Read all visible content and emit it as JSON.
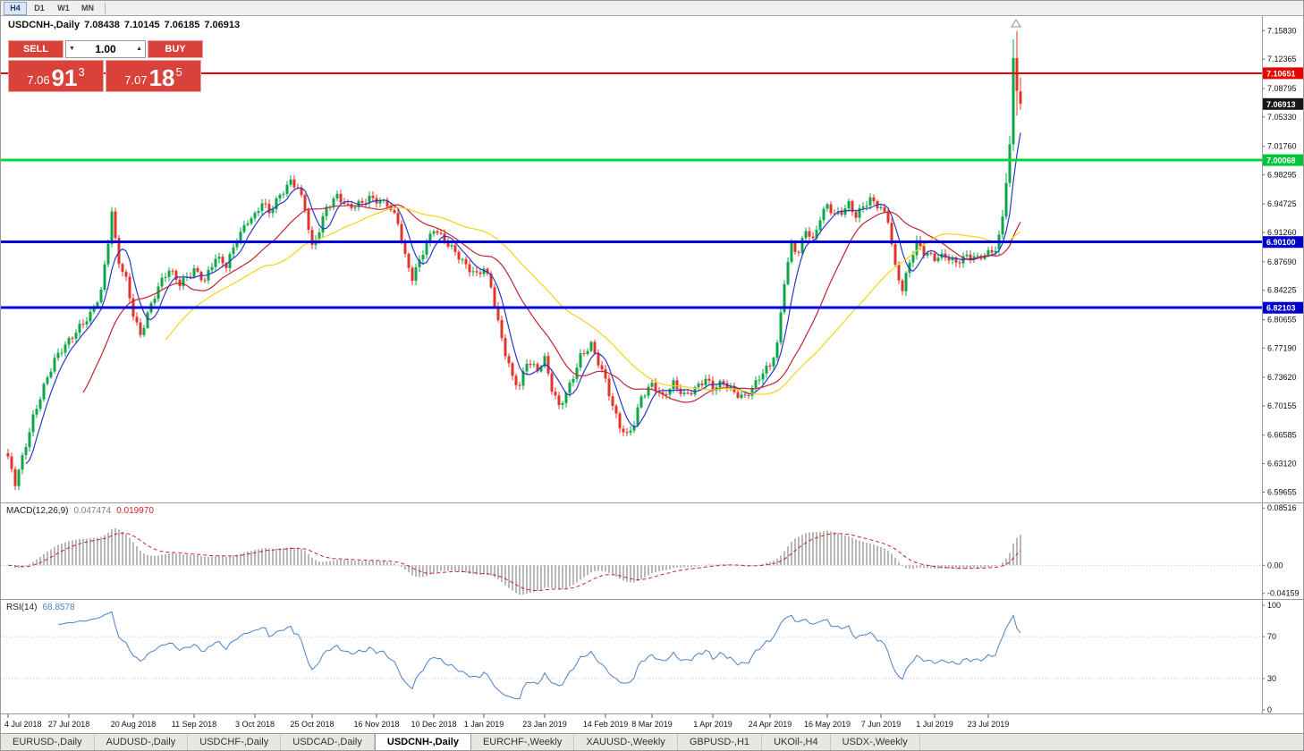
{
  "toolbar": {
    "timeframe_buttons": [
      {
        "label": "H4",
        "active": true
      },
      {
        "label": "D1",
        "active": false
      },
      {
        "label": "W1",
        "active": false
      },
      {
        "label": "MN",
        "active": false
      }
    ]
  },
  "chart_header": {
    "symbol_period": "USDCNH-,Daily",
    "open": "7.08438",
    "high": "7.10145",
    "low": "7.06185",
    "close": "7.06913"
  },
  "trade_panel": {
    "sell_button": "SELL",
    "buy_button": "BUY",
    "volume": "1.00",
    "sell_price": {
      "main": "7.06",
      "pips": "91",
      "fraction": "3"
    },
    "buy_price": {
      "main": "7.07",
      "pips": "18",
      "fraction": "5"
    },
    "panel_color": "#d8423a"
  },
  "price_axis": {
    "labels": [
      "7.15830",
      "7.12365",
      "7.08795",
      "7.05330",
      "7.01760",
      "6.98295",
      "6.94725",
      "6.91260",
      "6.87690",
      "6.84225",
      "6.80655",
      "6.77190",
      "6.73620",
      "6.70155",
      "6.66585",
      "6.63120",
      "6.59655"
    ],
    "badges": [
      {
        "value": "7.10651",
        "price": 7.10651,
        "color": "#e80000",
        "type": "resistance-line-price"
      },
      {
        "value": "7.06913",
        "price": 7.06913,
        "color": "#161616",
        "type": "current-price"
      },
      {
        "value": "7.00068",
        "price": 7.00068,
        "color": "#00c43a",
        "type": "support-line-price"
      },
      {
        "value": "6.90100",
        "price": 6.901,
        "color": "#0000cc",
        "type": "support-line-price"
      },
      {
        "value": "6.82103",
        "price": 6.82103,
        "color": "#0000cc",
        "type": "support-line-price"
      }
    ]
  },
  "macd": {
    "label": "MACD(12,26,9)",
    "main_value": "0.047474",
    "signal_value": "0.019970",
    "axis_labels": [
      "0.08516",
      "0.00",
      "-0.04159"
    ],
    "range": {
      "max": 0.092,
      "min": -0.05
    },
    "histogram_color": "#b8b8b8",
    "signal_color": "#d02020"
  },
  "rsi": {
    "label": "RSI(14)",
    "value": "68.8578",
    "axis_labels": [
      "100",
      "70",
      "30",
      "0"
    ],
    "levels": [
      70,
      30
    ],
    "line_color": "#4a82c8"
  },
  "tabs": [
    {
      "label": "EURUSD-,Daily",
      "active": false
    },
    {
      "label": "AUDUSD-,Daily",
      "active": false
    },
    {
      "label": "USDCHF-,Daily",
      "active": false
    },
    {
      "label": "USDCAD-,Daily",
      "active": false
    },
    {
      "label": "USDCNH-,Daily",
      "active": true
    },
    {
      "label": "EURCHF-,Weekly",
      "active": false
    },
    {
      "label": "XAUUSD-,Weekly",
      "active": false
    },
    {
      "label": "GBPUSD-,H1",
      "active": false
    },
    {
      "label": "UKOil-,H4",
      "active": false
    },
    {
      "label": "USDX-,Weekly",
      "active": false
    }
  ],
  "icons": {
    "chart_shift_marker": "triangle-up",
    "volume_decrease": "triangle-down",
    "volume_increase": "triangle-up"
  },
  "chart_data": {
    "type": "candlestick",
    "symbol": "USDCNH-",
    "timeframe": "Daily",
    "ohlc_current": {
      "open": 7.08438,
      "high": 7.10145,
      "low": 7.06185,
      "close": 7.06913
    },
    "price_range_visible": {
      "top": 7.175,
      "bottom": 6.585
    },
    "candle_colors": {
      "bull": "#0fa64a",
      "bear": "#e0352b"
    },
    "horizontal_lines": [
      {
        "price": 7.10651,
        "color": "#f00000",
        "width": 2
      },
      {
        "price": 7.00068,
        "color": "#00d93c",
        "width": 3
      },
      {
        "price": 6.901,
        "color": "#0000dd",
        "width": 3
      },
      {
        "price": 6.82103,
        "color": "#0000dd",
        "width": 3
      }
    ],
    "moving_averages": [
      {
        "name": "fast-blue",
        "color": "#2739c8",
        "period": 6
      },
      {
        "name": "mid-red",
        "color": "#c42333",
        "period": 22
      },
      {
        "name": "slow-yellow",
        "color": "#f5d414",
        "period": 45
      }
    ],
    "close_anchors": [
      [
        0,
        6.635
      ],
      [
        2,
        6.607
      ],
      [
        4,
        6.64
      ],
      [
        7,
        6.69
      ],
      [
        10,
        6.725
      ],
      [
        13,
        6.755
      ],
      [
        17,
        6.78
      ],
      [
        20,
        6.8
      ],
      [
        23,
        6.815
      ],
      [
        26,
        6.84
      ],
      [
        28,
        6.9
      ],
      [
        29,
        6.935
      ],
      [
        30,
        6.9
      ],
      [
        31,
        6.875
      ],
      [
        33,
        6.855
      ],
      [
        35,
        6.815
      ],
      [
        37,
        6.79
      ],
      [
        39,
        6.815
      ],
      [
        42,
        6.845
      ],
      [
        45,
        6.865
      ],
      [
        48,
        6.85
      ],
      [
        52,
        6.87
      ],
      [
        55,
        6.855
      ],
      [
        58,
        6.88
      ],
      [
        61,
        6.87
      ],
      [
        64,
        6.905
      ],
      [
        67,
        6.93
      ],
      [
        69,
        6.935
      ],
      [
        71,
        6.95
      ],
      [
        73,
        6.935
      ],
      [
        76,
        6.955
      ],
      [
        79,
        6.975
      ],
      [
        81,
        6.97
      ],
      [
        83,
        6.945
      ],
      [
        85,
        6.895
      ],
      [
        87,
        6.915
      ],
      [
        89,
        6.94
      ],
      [
        92,
        6.955
      ],
      [
        95,
        6.945
      ],
      [
        98,
        6.95
      ],
      [
        101,
        6.955
      ],
      [
        103,
        6.95
      ],
      [
        106,
        6.945
      ],
      [
        109,
        6.925
      ],
      [
        111,
        6.885
      ],
      [
        113,
        6.86
      ],
      [
        116,
        6.89
      ],
      [
        119,
        6.915
      ],
      [
        122,
        6.9
      ],
      [
        125,
        6.89
      ],
      [
        128,
        6.875
      ],
      [
        131,
        6.862
      ],
      [
        133,
        6.868
      ],
      [
        135,
        6.845
      ],
      [
        137,
        6.8
      ],
      [
        139,
        6.765
      ],
      [
        141,
        6.738
      ],
      [
        143,
        6.728
      ],
      [
        145,
        6.758
      ],
      [
        148,
        6.744
      ],
      [
        150,
        6.756
      ],
      [
        152,
        6.72
      ],
      [
        154,
        6.7
      ],
      [
        156,
        6.718
      ],
      [
        158,
        6.74
      ],
      [
        160,
        6.764
      ],
      [
        163,
        6.775
      ],
      [
        165,
        6.752
      ],
      [
        167,
        6.73
      ],
      [
        169,
        6.7
      ],
      [
        171,
        6.678
      ],
      [
        173,
        6.668
      ],
      [
        175,
        6.683
      ],
      [
        177,
        6.713
      ],
      [
        180,
        6.725
      ],
      [
        183,
        6.71
      ],
      [
        186,
        6.73
      ],
      [
        189,
        6.717
      ],
      [
        192,
        6.723
      ],
      [
        195,
        6.732
      ],
      [
        197,
        6.72
      ],
      [
        200,
        6.73
      ],
      [
        203,
        6.72
      ],
      [
        206,
        6.714
      ],
      [
        209,
        6.728
      ],
      [
        211,
        6.74
      ],
      [
        213,
        6.748
      ],
      [
        215,
        6.775
      ],
      [
        217,
        6.855
      ],
      [
        219,
        6.9
      ],
      [
        221,
        6.89
      ],
      [
        223,
        6.917
      ],
      [
        225,
        6.9
      ],
      [
        227,
        6.928
      ],
      [
        229,
        6.944
      ],
      [
        231,
        6.934
      ],
      [
        233,
        6.94
      ],
      [
        235,
        6.95
      ],
      [
        237,
        6.934
      ],
      [
        239,
        6.944
      ],
      [
        241,
        6.95
      ],
      [
        244,
        6.94
      ],
      [
        246,
        6.928
      ],
      [
        248,
        6.872
      ],
      [
        250,
        6.846
      ],
      [
        252,
        6.878
      ],
      [
        254,
        6.9
      ],
      [
        256,
        6.886
      ],
      [
        259,
        6.879
      ],
      [
        262,
        6.885
      ],
      [
        265,
        6.879
      ],
      [
        268,
        6.885
      ],
      [
        271,
        6.879
      ],
      [
        274,
        6.885
      ],
      [
        276,
        6.892
      ],
      [
        277,
        6.91
      ],
      [
        278,
        6.932
      ],
      [
        279,
        6.973
      ],
      [
        280,
        7.02
      ],
      [
        281,
        7.125
      ],
      [
        282,
        7.085
      ],
      [
        283,
        7.06913
      ]
    ],
    "final_candles": [
      {
        "i": 277,
        "o": 6.892,
        "h": 6.915,
        "l": 6.885,
        "c": 6.91
      },
      {
        "i": 278,
        "o": 6.91,
        "h": 6.94,
        "l": 6.905,
        "c": 6.932
      },
      {
        "i": 279,
        "o": 6.932,
        "h": 6.985,
        "l": 6.928,
        "c": 6.973
      },
      {
        "i": 280,
        "o": 6.973,
        "h": 7.03,
        "l": 6.968,
        "c": 7.02
      },
      {
        "i": 281,
        "o": 7.02,
        "h": 7.148,
        "l": 7.012,
        "c": 7.125
      },
      {
        "i": 282,
        "o": 7.125,
        "h": 7.158,
        "l": 7.055,
        "c": 7.085
      },
      {
        "i": 283,
        "o": 7.08438,
        "h": 7.10145,
        "l": 7.06185,
        "c": 7.06913
      }
    ],
    "date_ticks": [
      {
        "index": 0,
        "label": "4 Jul 2018"
      },
      {
        "index": 17,
        "label": "27 Jul 2018"
      },
      {
        "index": 35,
        "label": "20 Aug 2018"
      },
      {
        "index": 52,
        "label": "11 Sep 2018"
      },
      {
        "index": 69,
        "label": "3 Oct 2018"
      },
      {
        "index": 85,
        "label": "25 Oct 2018"
      },
      {
        "index": 103,
        "label": "16 Nov 2018"
      },
      {
        "index": 119,
        "label": "10 Dec 2018"
      },
      {
        "index": 133,
        "label": "1 Jan 2019"
      },
      {
        "index": 150,
        "label": "23 Jan 2019"
      },
      {
        "index": 167,
        "label": "14 Feb 2019"
      },
      {
        "index": 180,
        "label": "8 Mar 2019"
      },
      {
        "index": 197,
        "label": "1 Apr 2019"
      },
      {
        "index": 213,
        "label": "24 Apr 2019"
      },
      {
        "index": 229,
        "label": "16 May 2019"
      },
      {
        "index": 244,
        "label": "7 Jun 2019"
      },
      {
        "index": 259,
        "label": "1 Jul 2019"
      },
      {
        "index": 274,
        "label": "23 Jul 2019"
      }
    ]
  }
}
